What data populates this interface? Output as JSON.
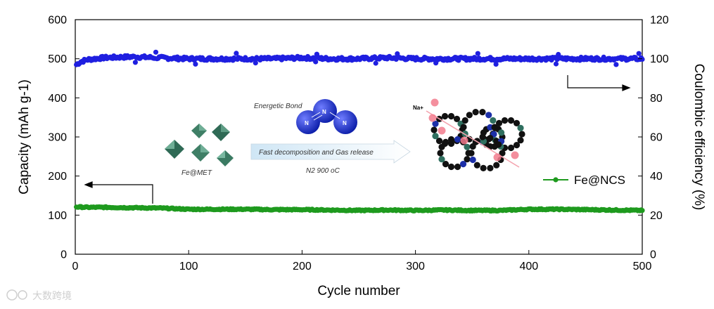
{
  "chart_data": {
    "type": "scatter",
    "xlabel": "Cycle number",
    "ylabel_left": "Capacity (mAh g-1)",
    "ylabel_right": "Coulombic efficiency (%)",
    "xlim": [
      0,
      500
    ],
    "ylim_left": [
      0,
      600
    ],
    "ylim_right": [
      0,
      120
    ],
    "x_ticks": [
      "0",
      "100",
      "200",
      "300",
      "400",
      "500"
    ],
    "y_left_ticks": [
      "0",
      "100",
      "200",
      "300",
      "400",
      "500",
      "600"
    ],
    "y_right_ticks": [
      "0",
      "20",
      "40",
      "60",
      "80",
      "100",
      "120"
    ],
    "grid": false,
    "legend_position": "right",
    "series": [
      {
        "name": "Fe@NCS",
        "axis": "left",
        "color": "#1e9a1e",
        "x": [
          1,
          10,
          25,
          50,
          75,
          100,
          125,
          150,
          175,
          200,
          225,
          250,
          275,
          300,
          325,
          350,
          375,
          400,
          425,
          450,
          475,
          500
        ],
        "y": [
          121,
          120,
          120,
          119,
          118,
          115,
          115,
          115,
          114,
          114,
          113,
          112,
          113,
          112,
          113,
          112,
          112,
          115,
          115,
          114,
          113,
          112
        ]
      },
      {
        "axis": "right",
        "color": "#1f1fe0",
        "x": [
          1,
          5,
          10,
          25,
          50,
          75,
          100,
          125,
          150,
          175,
          200,
          225,
          250,
          275,
          300,
          325,
          350,
          375,
          400,
          425,
          450,
          475,
          500
        ],
        "y": [
          97,
          98.5,
          99.5,
          100.5,
          101,
          100.5,
          100,
          100,
          100,
          100,
          100.5,
          100,
          100,
          100.5,
          100,
          100,
          100,
          100,
          100,
          100,
          100,
          100,
          100
        ]
      }
    ],
    "annotations": {
      "energetic_bond": "Energetic Bond",
      "arrow_text": "Fast decomposition and Gas release",
      "conditions": "N2 900 oC",
      "precursor": "Fe@MET",
      "ion": "Na+",
      "atom": "N"
    }
  },
  "watermark": "大数跨境",
  "colors": {
    "capacity": "#1e9a1e",
    "efficiency": "#1f1fe0",
    "octahedra": "#3f7f66",
    "sphere_black": "#111111",
    "sphere_green": "#2f6f5f",
    "sphere_blue": "#1c2fa8",
    "sodium": "#f27b8d"
  }
}
